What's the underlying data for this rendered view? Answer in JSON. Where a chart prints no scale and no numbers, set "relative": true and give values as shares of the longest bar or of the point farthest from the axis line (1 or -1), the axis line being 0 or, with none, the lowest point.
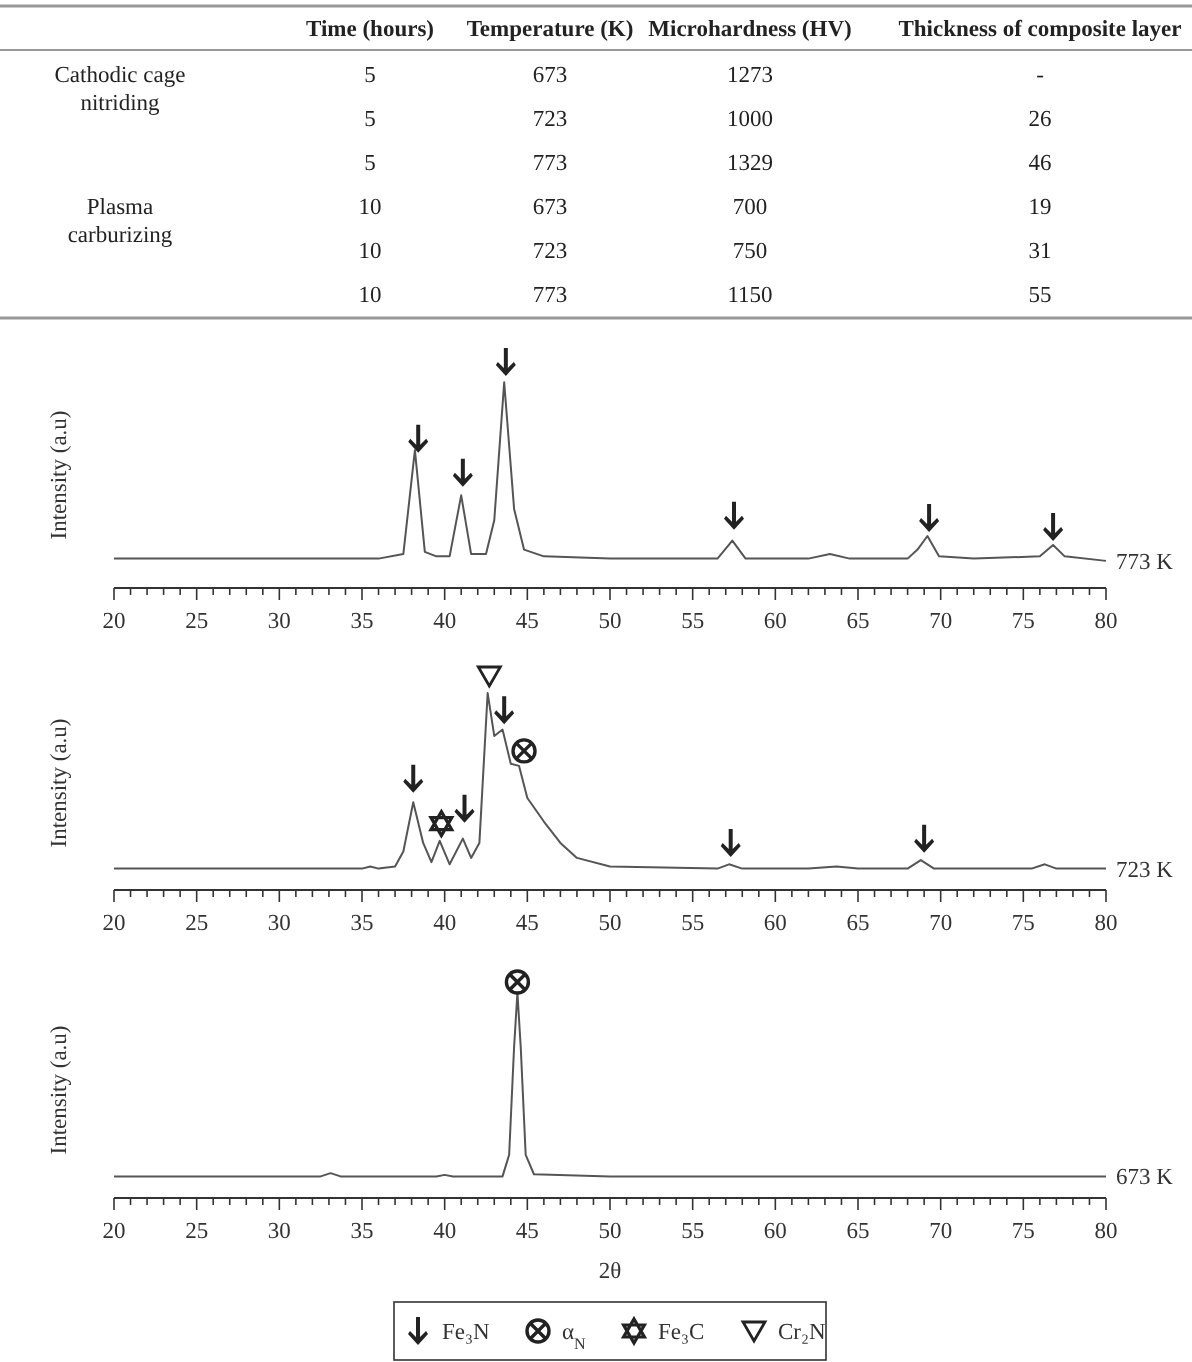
{
  "chart_data": [
    {
      "type": "other",
      "categories": [
        null,
        "Time (hours)",
        "Temperature (K)",
        "Microhardness (HV)",
        "Thickness of composite layer"
      ],
      "annotations": [
        "Cathodic cage nitriding",
        "5",
        "673",
        "1273",
        "-",
        null,
        "5",
        "723",
        "1000",
        "26",
        null,
        "5",
        "773",
        "1329",
        "46",
        "Plasma carburizing",
        "10",
        "673",
        "700",
        "19",
        null,
        "10",
        "723",
        "750",
        "31",
        null,
        "10",
        "773",
        "1150",
        "55"
      ]
    },
    {
      "type": "line",
      "relative": true,
      "ylabel": "Intensity (a.u)",
      "annotations": [
        "773 K"
      ],
      "xlim": [
        20,
        80
      ],
      "xticks": [
        20,
        {
          "value": 21,
          "label": null
        },
        {
          "value": 22,
          "label": null
        },
        {
          "value": 23,
          "label": null
        },
        {
          "value": 24,
          "label": null
        },
        25,
        {
          "value": 26,
          "label": null
        },
        {
          "value": 27,
          "label": null
        },
        {
          "value": 28,
          "label": null
        },
        {
          "value": 29,
          "label": null
        },
        30,
        {
          "value": 31,
          "label": null
        },
        {
          "value": 32,
          "label": null
        },
        {
          "value": 33,
          "label": null
        },
        {
          "value": 34,
          "label": null
        },
        35,
        {
          "value": 36,
          "label": null
        },
        {
          "value": 37,
          "label": null
        },
        {
          "value": 38,
          "label": null
        },
        {
          "value": 39,
          "label": null
        },
        40,
        {
          "value": 41,
          "label": null
        },
        {
          "value": 42,
          "label": null
        },
        {
          "value": 43,
          "label": null
        },
        {
          "value": 44,
          "label": null
        },
        45,
        {
          "value": 46,
          "label": null
        },
        {
          "value": 47,
          "label": null
        },
        {
          "value": 48,
          "label": null
        },
        {
          "value": 49,
          "label": null
        },
        50,
        {
          "value": 51,
          "label": null
        },
        {
          "value": 52,
          "label": null
        },
        {
          "value": 53,
          "label": null
        },
        {
          "value": 54,
          "label": null
        },
        55,
        {
          "value": 56,
          "label": null
        },
        {
          "value": 57,
          "label": null
        },
        {
          "value": 58,
          "label": null
        },
        {
          "value": 59,
          "label": null
        },
        60,
        {
          "value": 61,
          "label": null
        },
        {
          "value": 62,
          "label": null
        },
        {
          "value": 63,
          "label": null
        },
        {
          "value": 64,
          "label": null
        },
        65,
        {
          "value": 66,
          "label": null
        },
        {
          "value": 67,
          "label": null
        },
        {
          "value": 68,
          "label": null
        },
        {
          "value": 69,
          "label": null
        },
        70,
        {
          "value": 71,
          "label": null
        },
        {
          "value": 72,
          "label": null
        },
        {
          "value": 73,
          "label": null
        },
        {
          "value": 74,
          "label": null
        },
        75,
        {
          "value": 76,
          "label": null
        },
        {
          "value": 77,
          "label": null
        },
        {
          "value": 78,
          "label": null
        },
        {
          "value": 79,
          "label": null
        },
        80
      ],
      "series": [
        {
          "type": "line",
          "color": "#555555",
          "x": [
            20,
            30,
            36,
            37.5,
            38.2,
            38.8,
            39.5,
            40.3,
            41.0,
            41.6,
            42.5,
            43.0,
            43.6,
            44.2,
            44.8,
            46,
            50,
            56.5,
            57.4,
            58.2,
            62,
            63.3,
            64.5,
            68,
            68.6,
            69.2,
            69.9,
            72,
            76,
            76.8,
            77.5,
            80
          ],
          "values": [
            0.13,
            0.13,
            0.13,
            0.15,
            0.61,
            0.16,
            0.14,
            0.14,
            0.41,
            0.15,
            0.15,
            0.3,
            0.91,
            0.35,
            0.17,
            0.14,
            0.13,
            0.13,
            0.21,
            0.13,
            0.13,
            0.15,
            0.13,
            0.13,
            0.17,
            0.23,
            0.14,
            0.13,
            0.14,
            0.19,
            0.14,
            0.12
          ]
        },
        {
          "type": "scatter",
          "color": "#222222",
          "x": [
            38.4,
            41.1,
            43.7,
            57.5,
            69.3,
            76.8
          ],
          "values": [
            0.66,
            0.51,
            1.0,
            0.32,
            0.31,
            0.27
          ]
        }
      ]
    },
    {
      "type": "line",
      "relative": true,
      "ylabel": "Intensity (a.u)",
      "annotations": [
        "723 K"
      ],
      "xlim": [
        20,
        80
      ],
      "legend": "bottom",
      "xticks": [
        20,
        {
          "value": 21,
          "label": null
        },
        {
          "value": 22,
          "label": null
        },
        {
          "value": 23,
          "label": null
        },
        {
          "value": 24,
          "label": null
        },
        25,
        {
          "value": 26,
          "label": null
        },
        {
          "value": 27,
          "label": null
        },
        {
          "value": 28,
          "label": null
        },
        {
          "value": 29,
          "label": null
        },
        30,
        {
          "value": 31,
          "label": null
        },
        {
          "value": 32,
          "label": null
        },
        {
          "value": 33,
          "label": null
        },
        {
          "value": 34,
          "label": null
        },
        35,
        {
          "value": 36,
          "label": null
        },
        {
          "value": 37,
          "label": null
        },
        {
          "value": 38,
          "label": null
        },
        {
          "value": 39,
          "label": null
        },
        40,
        {
          "value": 41,
          "label": null
        },
        {
          "value": 42,
          "label": null
        },
        {
          "value": 43,
          "label": null
        },
        {
          "value": 44,
          "label": null
        },
        45,
        {
          "value": 46,
          "label": null
        },
        {
          "value": 47,
          "label": null
        },
        {
          "value": 48,
          "label": null
        },
        {
          "value": 49,
          "label": null
        },
        50,
        {
          "value": 51,
          "label": null
        },
        {
          "value": 52,
          "label": null
        },
        {
          "value": 53,
          "label": null
        },
        {
          "value": 54,
          "label": null
        },
        55,
        {
          "value": 56,
          "label": null
        },
        {
          "value": 57,
          "label": null
        },
        {
          "value": 58,
          "label": null
        },
        {
          "value": 59,
          "label": null
        },
        60,
        {
          "value": 61,
          "label": null
        },
        {
          "value": 62,
          "label": null
        },
        {
          "value": 63,
          "label": null
        },
        {
          "value": 64,
          "label": null
        },
        65,
        {
          "value": 66,
          "label": null
        },
        {
          "value": 67,
          "label": null
        },
        {
          "value": 68,
          "label": null
        },
        {
          "value": 69,
          "label": null
        },
        70,
        {
          "value": 71,
          "label": null
        },
        {
          "value": 72,
          "label": null
        },
        {
          "value": 73,
          "label": null
        },
        {
          "value": 74,
          "label": null
        },
        75,
        {
          "value": 76,
          "label": null
        },
        {
          "value": 77,
          "label": null
        },
        {
          "value": 78,
          "label": null
        },
        {
          "value": 79,
          "label": null
        },
        80
      ],
      "series": [
        {
          "type": "line",
          "color": "#555555",
          "x": [
            20,
            30,
            35,
            35.5,
            36,
            37,
            37.5,
            38.1,
            38.7,
            39.2,
            39.7,
            40.3,
            41.1,
            41.6,
            42.1,
            42.6,
            43.0,
            43.5,
            44.0,
            44.5,
            45,
            46,
            47,
            48,
            50,
            56.5,
            57.2,
            58,
            62,
            63.7,
            65,
            68,
            68.8,
            69.6,
            72,
            75.5,
            76.3,
            77,
            80
          ],
          "values": [
            0.1,
            0.1,
            0.1,
            0.11,
            0.1,
            0.11,
            0.18,
            0.41,
            0.22,
            0.13,
            0.23,
            0.12,
            0.24,
            0.15,
            0.22,
            0.92,
            0.72,
            0.75,
            0.59,
            0.58,
            0.43,
            0.32,
            0.22,
            0.15,
            0.11,
            0.1,
            0.12,
            0.1,
            0.1,
            0.11,
            0.1,
            0.1,
            0.14,
            0.1,
            0.1,
            0.1,
            0.12,
            0.1,
            0.1
          ]
        },
        {
          "type": "scatter",
          "name": "Fe₃N",
          "color": "#222222",
          "x": [
            38.1,
            41.2,
            43.6,
            57.3,
            69.0
          ],
          "values": [
            0.52,
            0.38,
            0.84,
            0.22,
            0.24
          ]
        },
        {
          "type": "scatter",
          "name": "α$_{N}$",
          "color": "#222222",
          "marker": "cross",
          "x": [
            44.8
          ],
          "values": [
            0.65
          ]
        },
        {
          "type": "scatter",
          "name": "Fe₃C",
          "color": "#222222",
          "marker": "star",
          "x": [
            39.8
          ],
          "values": [
            0.31
          ]
        },
        {
          "type": "scatter",
          "name": "Cr₂N",
          "color": "#222222",
          "marker": "triangle",
          "x": [
            42.7
          ],
          "values": [
            1.0
          ]
        }
      ]
    },
    {
      "type": "line",
      "relative": true,
      "ylabel": "Intensity (a.u)",
      "xlabel": "2θ",
      "annotations": [
        "673 K"
      ],
      "xlim": [
        20,
        80
      ],
      "xticks": [
        20,
        {
          "value": 21,
          "label": null
        },
        {
          "value": 22,
          "label": null
        },
        {
          "value": 23,
          "label": null
        },
        {
          "value": 24,
          "label": null
        },
        25,
        {
          "value": 26,
          "label": null
        },
        {
          "value": 27,
          "label": null
        },
        {
          "value": 28,
          "label": null
        },
        {
          "value": 29,
          "label": null
        },
        30,
        {
          "value": 31,
          "label": null
        },
        {
          "value": 32,
          "label": null
        },
        {
          "value": 33,
          "label": null
        },
        {
          "value": 34,
          "label": null
        },
        35,
        {
          "value": 36,
          "label": null
        },
        {
          "value": 37,
          "label": null
        },
        {
          "value": 38,
          "label": null
        },
        {
          "value": 39,
          "label": null
        },
        40,
        {
          "value": 41,
          "label": null
        },
        {
          "value": 42,
          "label": null
        },
        {
          "value": 43,
          "label": null
        },
        {
          "value": 44,
          "label": null
        },
        45,
        {
          "value": 46,
          "label": null
        },
        {
          "value": 47,
          "label": null
        },
        {
          "value": 48,
          "label": null
        },
        {
          "value": 49,
          "label": null
        },
        50,
        {
          "value": 51,
          "label": null
        },
        {
          "value": 52,
          "label": null
        },
        {
          "value": 53,
          "label": null
        },
        {
          "value": 54,
          "label": null
        },
        55,
        {
          "value": 56,
          "label": null
        },
        {
          "value": 57,
          "label": null
        },
        {
          "value": 58,
          "label": null
        },
        {
          "value": 59,
          "label": null
        },
        60,
        {
          "value": 61,
          "label": null
        },
        {
          "value": 62,
          "label": null
        },
        {
          "value": 63,
          "label": null
        },
        {
          "value": 64,
          "label": null
        },
        65,
        {
          "value": 66,
          "label": null
        },
        {
          "value": 67,
          "label": null
        },
        {
          "value": 68,
          "label": null
        },
        {
          "value": 69,
          "label": null
        },
        70,
        {
          "value": 71,
          "label": null
        },
        {
          "value": 72,
          "label": null
        },
        {
          "value": 73,
          "label": null
        },
        {
          "value": 74,
          "label": null
        },
        75,
        {
          "value": 76,
          "label": null
        },
        {
          "value": 77,
          "label": null
        },
        {
          "value": 78,
          "label": null
        },
        {
          "value": 79,
          "label": null
        },
        80
      ],
      "series": [
        {
          "type": "line",
          "color": "#555555",
          "x": [
            20,
            32.5,
            33.1,
            33.7,
            39.5,
            40,
            40.5,
            43.5,
            43.9,
            44.2,
            44.4,
            44.6,
            44.9,
            45.4,
            50,
            80
          ],
          "values": [
            0.1,
            0.1,
            0.115,
            0.1,
            0.1,
            0.107,
            0.1,
            0.1,
            0.2,
            0.7,
            0.95,
            0.7,
            0.2,
            0.11,
            0.1,
            0.1
          ]
        },
        {
          "type": "scatter",
          "color": "#222222",
          "marker": "cross",
          "x": [
            44.4
          ],
          "values": [
            1.0
          ]
        }
      ]
    }
  ]
}
